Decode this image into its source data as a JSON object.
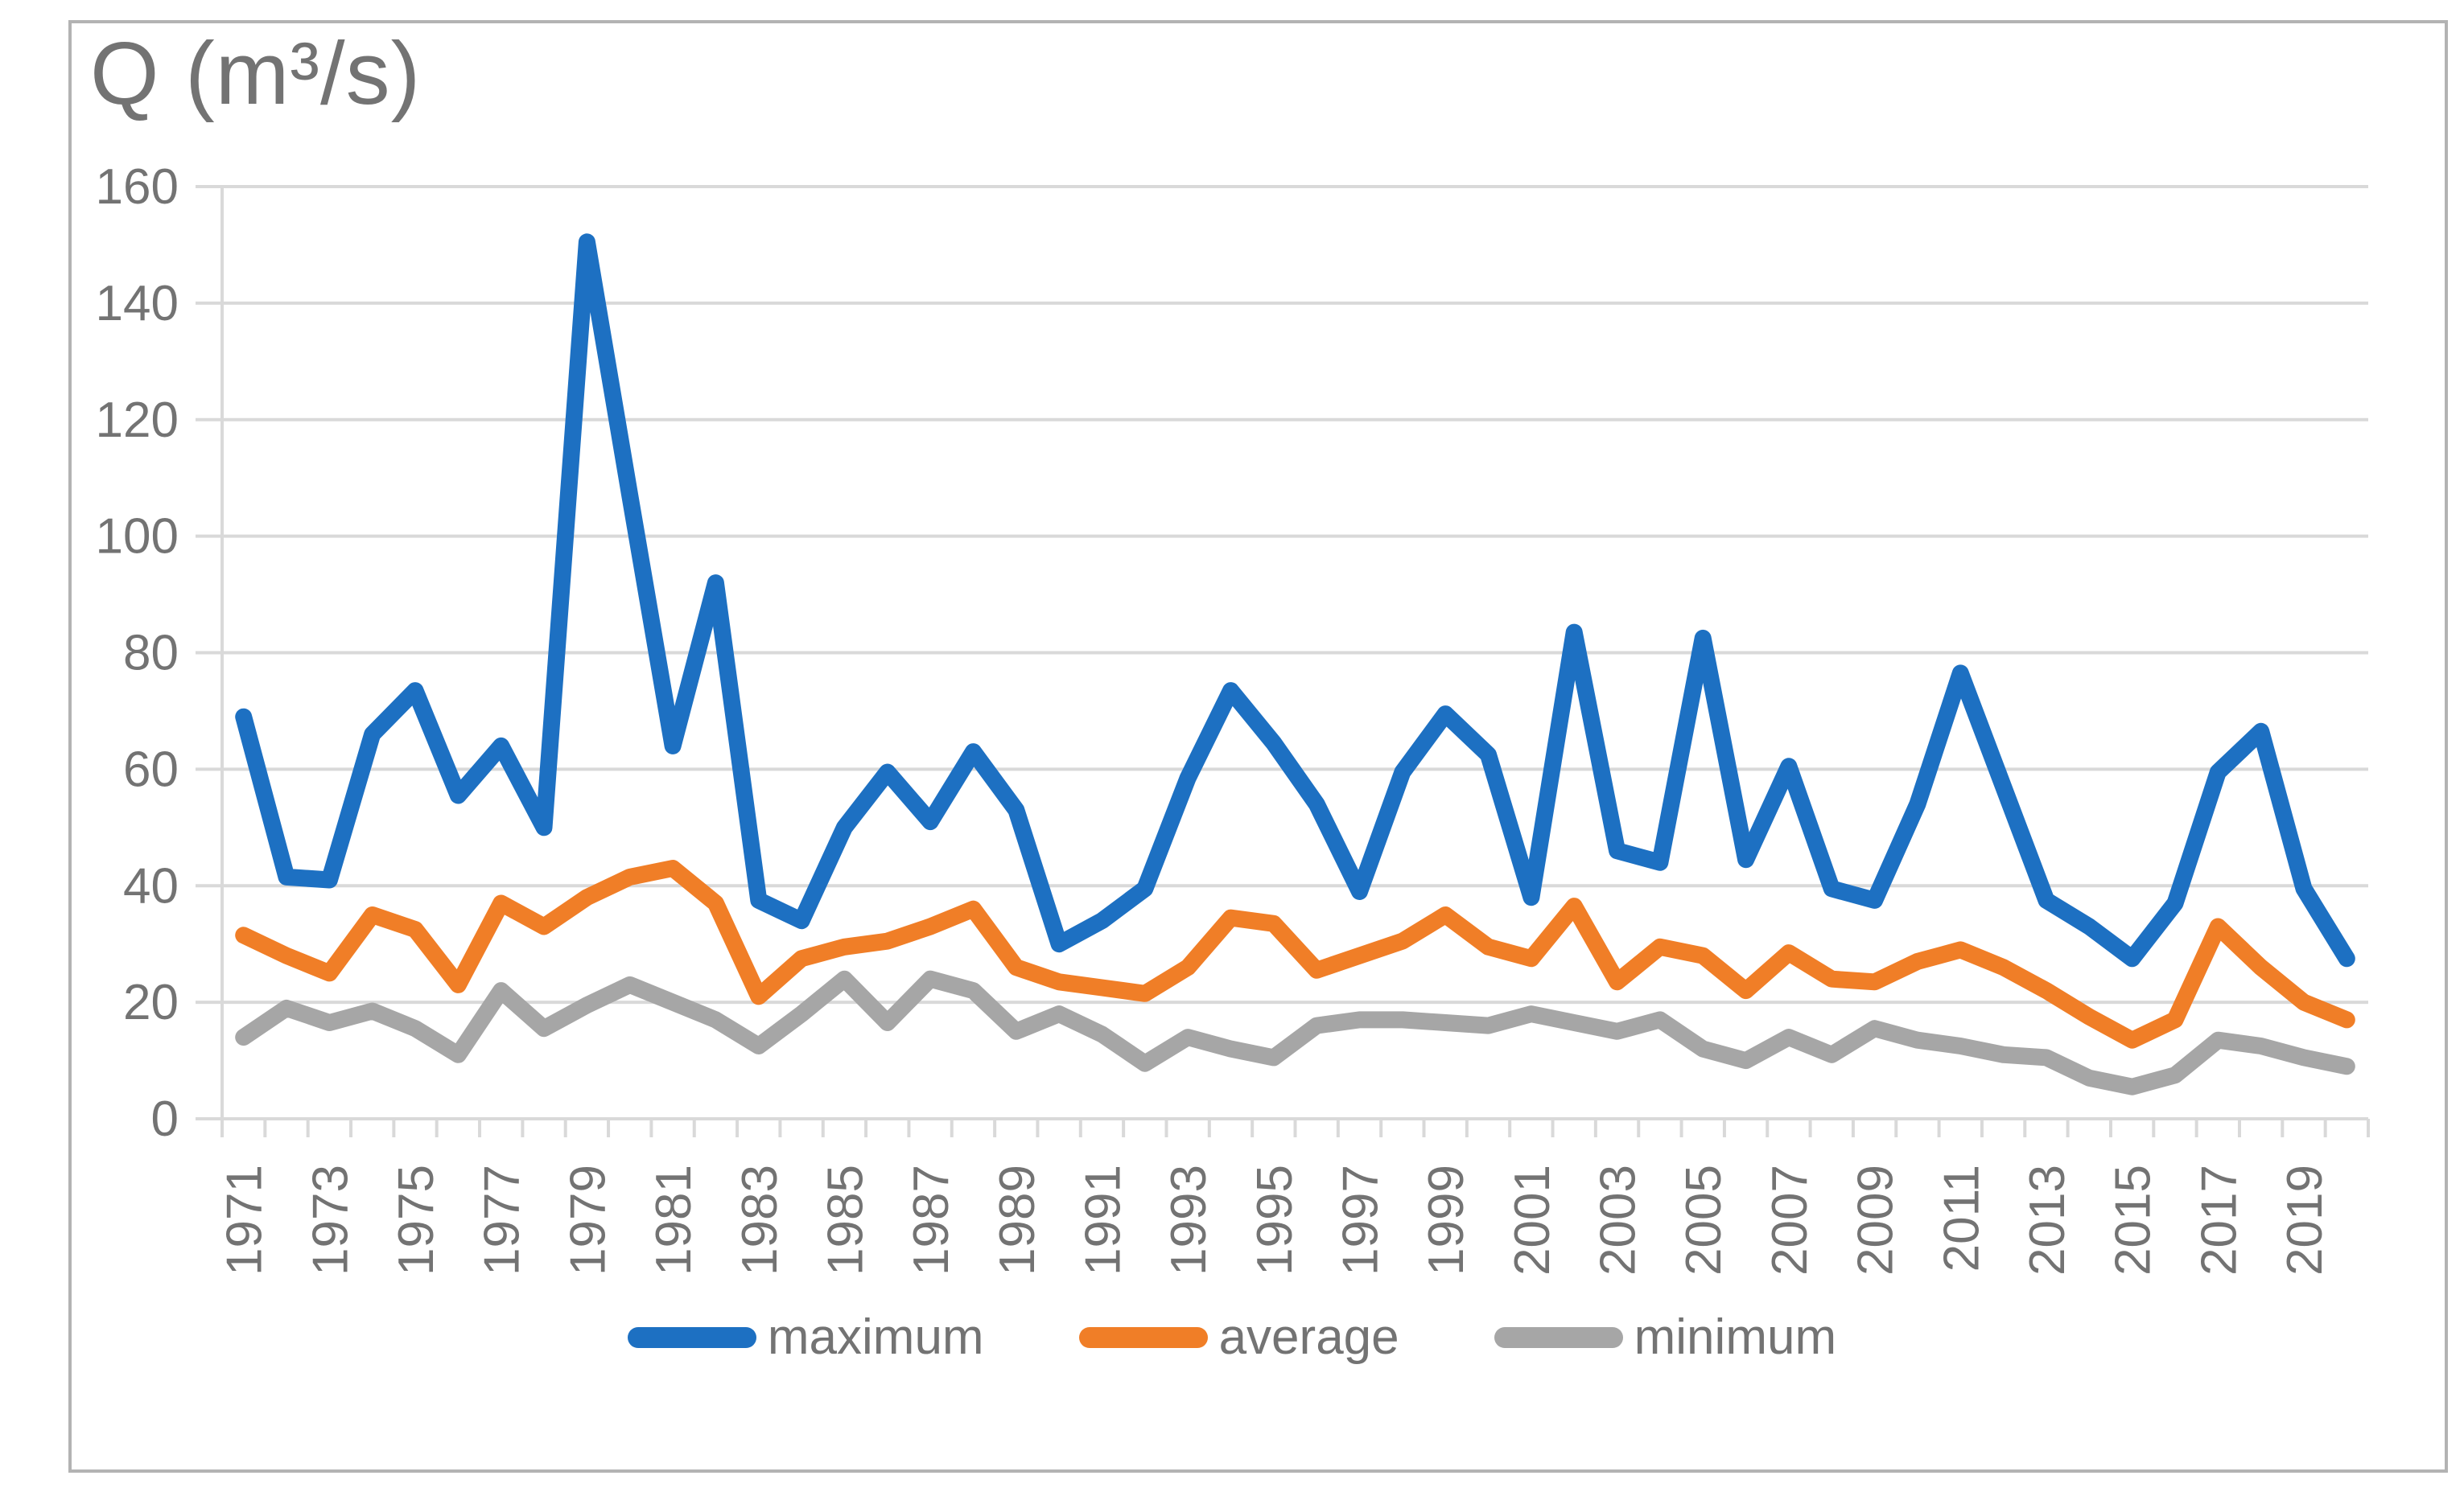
{
  "title": "Q (m³/s)",
  "chart_data": {
    "type": "line",
    "title": "Q (m³/s)",
    "x": [
      1971,
      1972,
      1973,
      1974,
      1975,
      1976,
      1977,
      1978,
      1979,
      1980,
      1981,
      1982,
      1983,
      1984,
      1985,
      1986,
      1987,
      1988,
      1989,
      1990,
      1991,
      1992,
      1993,
      1994,
      1995,
      1996,
      1997,
      1998,
      1999,
      2000,
      2001,
      2002,
      2003,
      2004,
      2005,
      2006,
      2007,
      2008,
      2009,
      2010,
      2011,
      2012,
      2013,
      2014,
      2015,
      2016,
      2017,
      2018,
      2019,
      2020
    ],
    "series": [
      {
        "name": "maximum",
        "color": "#1d70c2",
        "values": [
          69,
          41.5,
          41,
          66,
          73.5,
          55.5,
          64,
          50,
          150.5,
          107,
          64,
          92,
          37.5,
          34,
          50,
          59.5,
          51,
          63,
          53,
          30,
          34,
          39.5,
          58.5,
          73.5,
          64.5,
          54,
          39,
          59.5,
          69.5,
          62.5,
          38,
          83.5,
          46,
          44,
          82.5,
          44.5,
          60.5,
          39.5,
          37.5,
          54,
          76.5,
          57,
          37.5,
          33,
          27.5,
          37,
          59.5,
          66.5,
          39.5,
          27.5
        ]
      },
      {
        "name": "average",
        "color": "#f07e27",
        "values": [
          31.5,
          28,
          25,
          35,
          32.5,
          23,
          37,
          33,
          38,
          41.5,
          43,
          37,
          21,
          27.5,
          29.5,
          30.5,
          33,
          36,
          26,
          23.5,
          22.5,
          21.5,
          26,
          34.5,
          33.5,
          25.5,
          28,
          30.5,
          35,
          29.5,
          27.5,
          36.5,
          23.5,
          29.5,
          28,
          22,
          28.5,
          24,
          23.5,
          27,
          29,
          26,
          22,
          17.5,
          13.5,
          17,
          33,
          26,
          20,
          17
        ]
      },
      {
        "name": "minimum",
        "color": "#a6a6a6",
        "values": [
          14,
          19,
          16.5,
          18.5,
          15.5,
          11,
          22,
          15.5,
          19.5,
          23,
          20,
          17,
          12.5,
          18,
          24,
          16.5,
          24,
          22,
          15,
          18,
          14.5,
          9.5,
          14,
          12,
          10.5,
          16,
          17,
          17,
          16.5,
          16,
          18,
          16.5,
          15,
          17,
          12,
          10,
          14,
          11,
          15.5,
          13.5,
          12.5,
          11,
          10.5,
          7,
          5.5,
          7.5,
          13.5,
          12.5,
          10.5,
          9
        ]
      }
    ],
    "ylim": [
      0,
      160
    ],
    "ytick_step": 20,
    "y_tick_labels": [
      "0",
      "20",
      "40",
      "60",
      "80",
      "100",
      "120",
      "140",
      "160"
    ],
    "x_tick_labels": [
      "1971",
      "1973",
      "1975",
      "1977",
      "1979",
      "1981",
      "1983",
      "1985",
      "1987",
      "1989",
      "1991",
      "1993",
      "1995",
      "1997",
      "1999",
      "2001",
      "2003",
      "2005",
      "2007",
      "2009",
      "2011",
      "2013",
      "2015",
      "2017",
      "2019"
    ],
    "grid": "horizontal",
    "legend_position": "bottom"
  },
  "legend": {
    "items": [
      {
        "label": "maximum",
        "color": "#1d70c2"
      },
      {
        "label": "average",
        "color": "#f07e27"
      },
      {
        "label": "minimum",
        "color": "#a6a6a6"
      }
    ]
  },
  "style": {
    "gridline_color": "#d9d9d9",
    "axis_color": "#d9d9d9",
    "tick_color": "#d9d9d9",
    "label_color": "#737373",
    "frame_color": "#b3b3b3",
    "background": "#ffffff"
  }
}
